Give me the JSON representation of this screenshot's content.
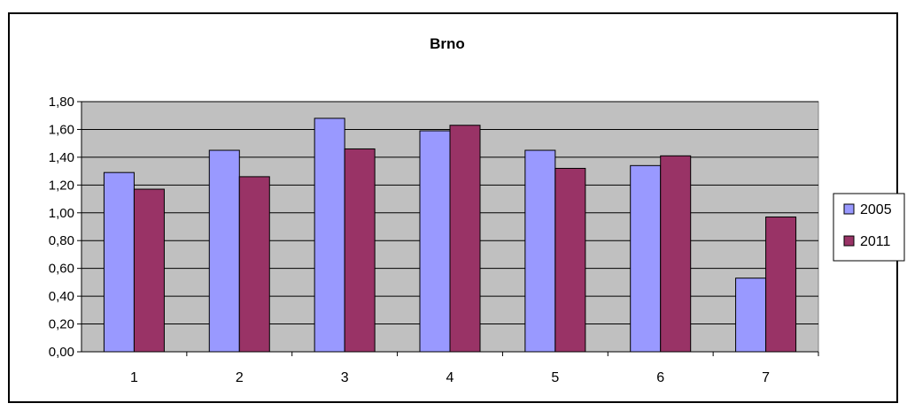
{
  "chart_data": {
    "type": "bar",
    "title": "Brno",
    "xlabel": "",
    "ylabel": "",
    "categories": [
      "1",
      "2",
      "3",
      "4",
      "5",
      "6",
      "7"
    ],
    "series": [
      {
        "name": "2005",
        "color": "#9999ff",
        "values": [
          1.29,
          1.45,
          1.68,
          1.59,
          1.45,
          1.34,
          0.53
        ]
      },
      {
        "name": "2011",
        "color": "#993366",
        "values": [
          1.17,
          1.26,
          1.46,
          1.63,
          1.32,
          1.41,
          0.97
        ]
      }
    ],
    "ylim": [
      0,
      1.8
    ],
    "y_ticks": [
      "0,00",
      "0,20",
      "0,40",
      "0,60",
      "0,80",
      "1,00",
      "1,20",
      "1,40",
      "1,60",
      "1,80"
    ],
    "grid": true,
    "legend_position": "right",
    "plot_background": "#c0c0c0"
  }
}
